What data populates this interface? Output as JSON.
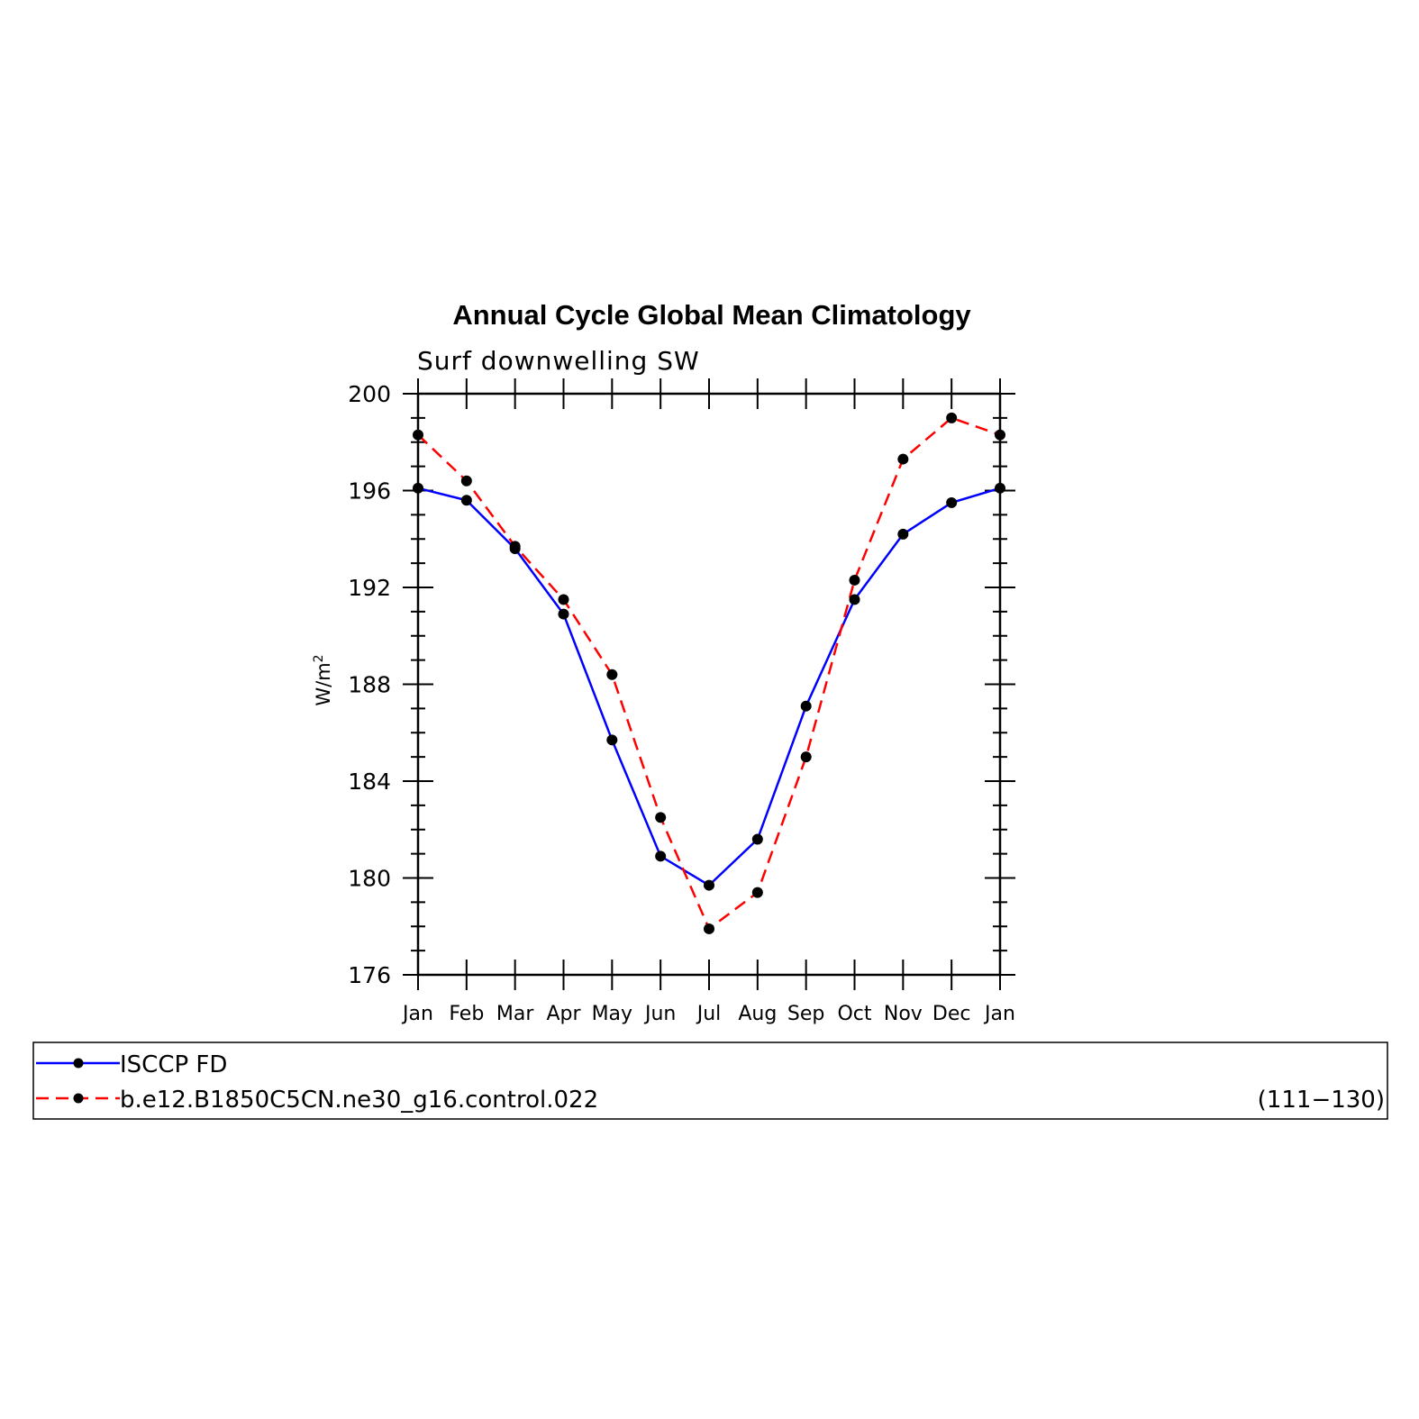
{
  "chart_data": {
    "type": "line",
    "title": "Annual Cycle Global Mean Climatology",
    "subtitle": "Surf downwelling SW",
    "ylabel_base": "W/m",
    "ylabel_sup": "2",
    "ylim": [
      176,
      200
    ],
    "yticks": [
      176,
      180,
      184,
      188,
      192,
      196,
      200
    ],
    "categories": [
      "Jan",
      "Feb",
      "Mar",
      "Apr",
      "May",
      "Jun",
      "Jul",
      "Aug",
      "Sep",
      "Oct",
      "Nov",
      "Dec",
      "Jan"
    ],
    "series": [
      {
        "name": "ISCCP FD",
        "color": "#0000ff",
        "dash": "solid",
        "values": [
          196.1,
          195.6,
          193.6,
          190.9,
          185.7,
          180.9,
          179.7,
          181.6,
          187.1,
          191.5,
          194.2,
          195.5,
          196.1
        ]
      },
      {
        "name": "b.e12.B1850C5CN.ne30_g16.control.022",
        "color": "#ff0000",
        "dash": "dashed",
        "values": [
          198.3,
          196.4,
          193.7,
          191.5,
          188.4,
          182.5,
          177.9,
          179.4,
          185.0,
          192.3,
          197.3,
          199.0,
          198.3
        ]
      }
    ],
    "legend_note": "(111−130)",
    "grid": false,
    "legend_position": "bottom"
  }
}
